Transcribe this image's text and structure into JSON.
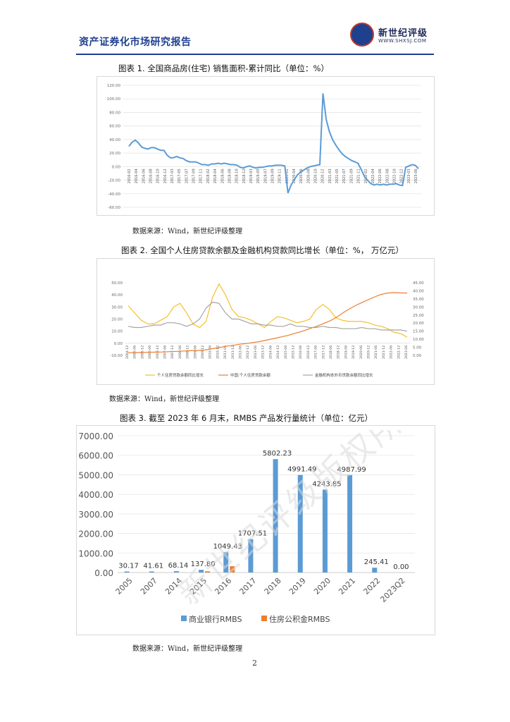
{
  "header": {
    "title": "资产证券化市场研究报告",
    "logo_name": "新世纪评级",
    "logo_url": "WWW.SHXSJ.COM"
  },
  "figures": [
    {
      "title": "图表 1.   全国商品房(住宅) 销售面积-累计同比（单位：%）",
      "source": "数据来源：Wind，新世纪评级整理"
    },
    {
      "title": "图表 2.   全国个人住房贷款余额及金融机构贷款同比增长（单位：%， 万亿元）",
      "source": "数据来源：Wind，新世纪评级整理"
    },
    {
      "title": "图表 3.   截至 2023 年 6 月末，RMBS 产品发行量统计（单位：亿元）",
      "source": "数据来源：Wind，新世纪评级整理"
    }
  ],
  "page_number": "2",
  "watermark": "新世纪评级版权所有",
  "chart_data": [
    {
      "type": "line",
      "ylim": [
        -60,
        120
      ],
      "yticks": [
        "120.00",
        "100.00",
        "80.00",
        "60.00",
        "40.00",
        "20.00",
        "0.00",
        "-20.00",
        "-40.00",
        "-60.00"
      ],
      "xticks": [
        "2016-02",
        "2016-04",
        "2016-06",
        "2016-08",
        "2016-10",
        "2016-12",
        "2017-03",
        "2017-05",
        "2017-07",
        "2017-09",
        "2017-11",
        "2018-02",
        "2018-04",
        "2018-06",
        "2018-08",
        "2018-10",
        "2018-12",
        "2019-03",
        "2019-05",
        "2019-07",
        "2019-09",
        "2019-11",
        "2020-02",
        "2020-04",
        "2020-06",
        "2020-08",
        "2020-10",
        "2020-12",
        "2021-03",
        "2021-05",
        "2021-07",
        "2021-09",
        "2021-11",
        "2022-02",
        "2022-04",
        "2022-06",
        "2022-08",
        "2022-10",
        "2022-12",
        "2023-03",
        "2023-06"
      ],
      "series": [
        {
          "color": "#5b9bd5",
          "values": [
            30,
            36,
            39,
            35,
            29,
            27,
            26,
            28,
            28,
            26,
            24,
            24,
            17,
            13,
            13,
            15,
            13,
            12,
            9,
            7,
            7,
            7,
            5,
            3,
            3,
            2,
            4,
            4,
            5,
            4,
            5,
            4,
            3,
            3,
            2,
            -1,
            -2,
            0,
            1,
            -1,
            -2,
            -1,
            -1,
            0,
            1,
            1,
            2,
            2,
            2,
            1,
            -39,
            -27,
            -19,
            -12,
            -8,
            -5,
            -2,
            0,
            1,
            2,
            3,
            108,
            70,
            52,
            40,
            32,
            25,
            19,
            15,
            12,
            9,
            7,
            5,
            -4,
            -14,
            -20,
            -25,
            -27,
            -26,
            -27,
            -26,
            -27,
            -26,
            -26,
            -25,
            -27,
            -28,
            -1,
            1,
            3,
            2,
            -3
          ]
        }
      ]
    },
    {
      "type": "line",
      "ylim": [
        -10,
        50
      ],
      "yticks": [
        "50.00",
        "40.00",
        "30.00",
        "20.00",
        "10.00",
        "0.00",
        "-10.00"
      ],
      "y2lim": [
        0,
        45
      ],
      "y2ticks": [
        "45.00",
        "40.00",
        "35.00",
        "30.00",
        "25.00",
        "20.00",
        "15.00",
        "10.00",
        "5.00",
        "0.00"
      ],
      "xticks": [
        "2004-12",
        "2005-06",
        "2005-12",
        "2006-06",
        "2006-12",
        "2007-06",
        "2007-12",
        "2008-06",
        "2008-12",
        "2009-06",
        "2009-12",
        "2010-06",
        "2010-12",
        "2011-06",
        "2011-12",
        "2012-06",
        "2012-12",
        "2013-06",
        "2013-12",
        "2014-06",
        "2014-12",
        "2015-06",
        "2015-12",
        "2016-06",
        "2016-12",
        "2017-06",
        "2017-12",
        "2018-06",
        "2018-12",
        "2019-06",
        "2019-12",
        "2020-06",
        "2020-12",
        "2021-06",
        "2021-12",
        "2022-06",
        "2022-12",
        "2023-06"
      ],
      "series": [
        {
          "name": "个人住房贷款余额同比增长",
          "color": "#f2c12e",
          "axis": "left",
          "values": [
            31,
            25,
            19,
            16,
            16,
            19,
            22,
            30,
            33,
            25,
            16,
            13,
            18,
            38,
            49,
            40,
            28,
            22,
            21,
            19,
            16,
            13,
            18,
            22,
            21,
            19,
            17,
            18,
            20,
            28,
            32,
            28,
            21,
            19,
            18,
            18,
            18,
            17,
            15,
            14,
            12,
            9,
            8,
            5
          ]
        },
        {
          "name": "中国:个人住房贷款余额",
          "color": "#ed7d31",
          "axis": "right",
          "values": [
            1.6,
            1.7,
            1.8,
            1.9,
            2.0,
            2.1,
            2.3,
            2.5,
            2.7,
            2.9,
            3.0,
            3.3,
            4.1,
            4.8,
            5.6,
            6.2,
            6.9,
            7.4,
            8.0,
            8.7,
            9.6,
            10.5,
            11.5,
            12.5,
            13.7,
            15.0,
            16.5,
            18.0,
            19.7,
            21.5,
            24.0,
            26.9,
            29.5,
            31.7,
            33.7,
            35.6,
            37.4,
            38.5,
            38.9,
            38.7,
            38.6
          ]
        },
        {
          "name": "金融机构本外币贷款余额同比增长",
          "color": "#a5a5a5",
          "axis": "left",
          "values": [
            14,
            13,
            13,
            14,
            15,
            15,
            17,
            17,
            16,
            14,
            16,
            20,
            29,
            34,
            33,
            25,
            20,
            20,
            18,
            16,
            16,
            15,
            15,
            14,
            14,
            16,
            14,
            14,
            13,
            13,
            14,
            13,
            13,
            12,
            12,
            12,
            13,
            12,
            12,
            11,
            11,
            11,
            11,
            10
          ]
        }
      ]
    },
    {
      "type": "bar",
      "ylim": [
        0,
        7000
      ],
      "yticks": [
        "7000.00",
        "6000.00",
        "5000.00",
        "4000.00",
        "3000.00",
        "2000.00",
        "1000.00",
        "0.00"
      ],
      "categories": [
        "2005",
        "2007",
        "2014",
        "2015",
        "2016",
        "2017",
        "2018",
        "2019",
        "2020",
        "2021",
        "2022",
        "2023Q2"
      ],
      "series": [
        {
          "name": "商业银行RMBS",
          "color": "#5b9bd5",
          "values": [
            30.17,
            41.61,
            68.14,
            137.8,
            1049.43,
            1707.51,
            5802.23,
            4991.49,
            4243.85,
            4987.99,
            245.41,
            0.0
          ],
          "labels": [
            "30.17",
            "41.61",
            "68.14",
            "137.80",
            "1049.43",
            "1707.51",
            "5802.23",
            "4991.49",
            "4243.85",
            "4987.99",
            "245.41",
            "0.00"
          ]
        },
        {
          "name": "住房公积金RMBS",
          "color": "#ed7d31",
          "values": [
            0,
            0,
            0,
            62,
            322,
            0,
            0,
            0,
            0,
            0,
            0,
            0
          ]
        }
      ]
    }
  ]
}
